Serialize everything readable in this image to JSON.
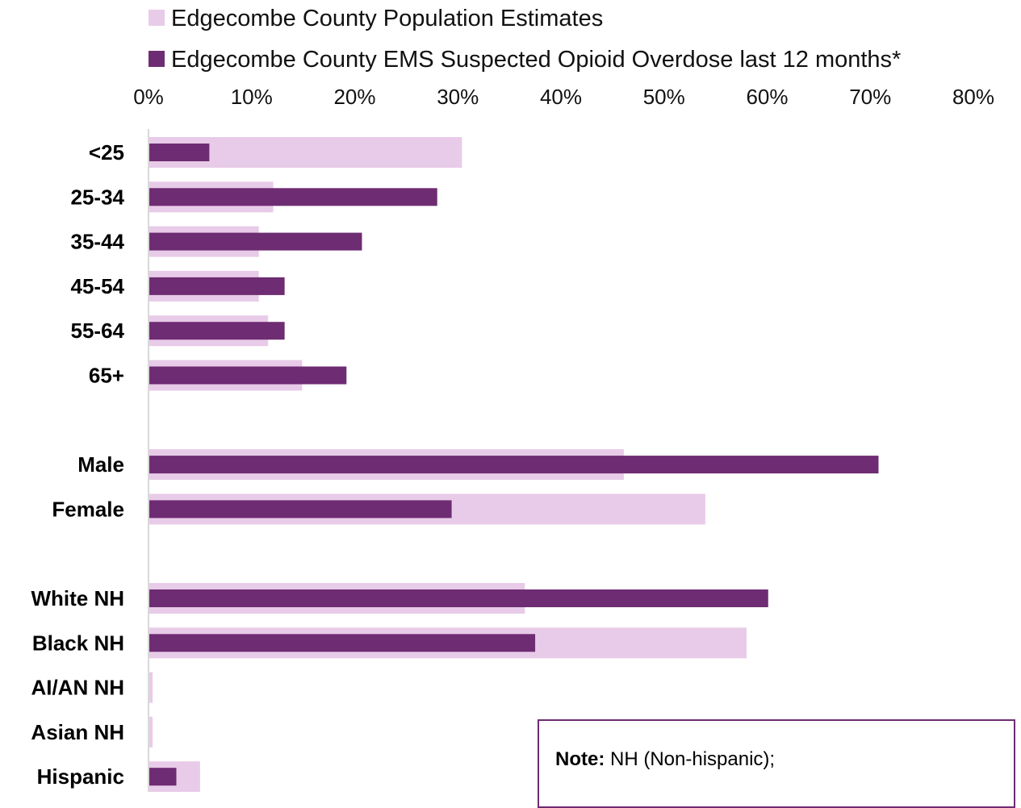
{
  "chart_data": {
    "type": "bar",
    "orientation": "horizontal",
    "title": "",
    "xlabel": "",
    "ylabel": "",
    "xlim": [
      0,
      80
    ],
    "x_ticks": [
      "0%",
      "10%",
      "20%",
      "30%",
      "40%",
      "50%",
      "60%",
      "70%",
      "80%"
    ],
    "x_tick_values": [
      0,
      10,
      20,
      30,
      40,
      50,
      60,
      70,
      80
    ],
    "x_axis_position": "top",
    "grid": false,
    "legend_position": "top",
    "categories": [
      "<25",
      "25-34",
      "35-44",
      "45-54",
      "55-64",
      "65+",
      "Male",
      "Female",
      "White NH",
      "Black NH",
      "AI/AN NH",
      "Asian NH",
      "Hispanic"
    ],
    "group_breaks_after": [
      "65+",
      "Female"
    ],
    "series": [
      {
        "name": "Edgecombe County Population Estimates",
        "color": "#e8cbe8",
        "values": [
          30.4,
          12.1,
          10.7,
          10.7,
          11.6,
          14.9,
          46.1,
          54.0,
          36.5,
          58.0,
          0.4,
          0.4,
          5.0
        ]
      },
      {
        "name": "Edgecombe County EMS Suspected Opioid Overdose last 12 months*",
        "color": "#6e2c73",
        "values": [
          5.9,
          28.0,
          20.7,
          13.2,
          13.2,
          19.2,
          70.8,
          29.4,
          60.1,
          37.5,
          0,
          0,
          2.7
        ]
      }
    ]
  },
  "note": {
    "label": "Note:",
    "text": " NH (Non-hispanic);"
  }
}
